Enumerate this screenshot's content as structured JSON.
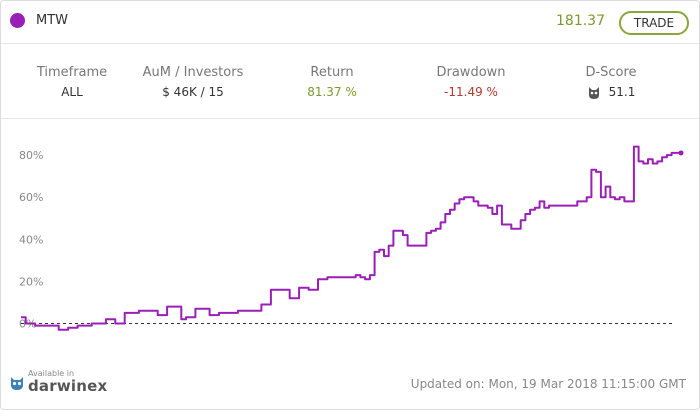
{
  "header": {
    "name": "MTW",
    "price": "181.37",
    "trade_label": "TRADE",
    "dot_color": "#9a1fb7",
    "price_color": "#7a9a2e"
  },
  "stats": [
    {
      "label": "Timeframe",
      "value": "ALL"
    },
    {
      "label": "AuM / Investors",
      "value": "$ 46K / 15"
    },
    {
      "label": "Return",
      "value": "81.37 %",
      "color": "#7a9a2e"
    },
    {
      "label": "Drawdown",
      "value": "-11.49 %",
      "color": "#b03a2e"
    },
    {
      "label": "D-Score",
      "value": "51.1",
      "icon": "owl-icon"
    }
  ],
  "chart_data": {
    "type": "line",
    "ylabel": "",
    "yticks": [
      "0%",
      "20%",
      "40%",
      "60%",
      "80%"
    ],
    "ylim": [
      -5,
      90
    ],
    "baseline": 0,
    "line_color": "#9a1fb7",
    "series": [
      {
        "values": [
          [
            0,
            3
          ],
          [
            1,
            0
          ],
          [
            2,
            0
          ],
          [
            3,
            -1
          ],
          [
            5,
            -1
          ],
          [
            8,
            -3
          ],
          [
            10,
            -2
          ],
          [
            12,
            -1
          ],
          [
            15,
            0
          ],
          [
            18,
            2
          ],
          [
            20,
            0
          ],
          [
            22,
            5
          ],
          [
            25,
            6
          ],
          [
            27,
            6
          ],
          [
            29,
            4
          ],
          [
            31,
            8
          ],
          [
            33,
            8
          ],
          [
            34,
            2
          ],
          [
            35,
            3
          ],
          [
            37,
            7
          ],
          [
            39,
            7
          ],
          [
            40,
            4
          ],
          [
            42,
            5
          ],
          [
            44,
            5
          ],
          [
            46,
            6
          ],
          [
            48,
            6
          ],
          [
            49,
            6
          ],
          [
            51,
            9
          ],
          [
            52,
            9
          ],
          [
            53,
            16
          ],
          [
            55,
            16
          ],
          [
            56,
            16
          ],
          [
            57,
            12
          ],
          [
            59,
            17
          ],
          [
            61,
            16
          ],
          [
            63,
            21
          ],
          [
            65,
            22
          ],
          [
            67,
            22
          ],
          [
            69,
            22
          ],
          [
            71,
            23
          ],
          [
            72,
            22
          ],
          [
            73,
            21
          ],
          [
            74,
            23
          ],
          [
            75,
            34
          ],
          [
            76,
            35
          ],
          [
            77,
            32
          ],
          [
            78,
            37
          ],
          [
            79,
            44
          ],
          [
            80,
            44
          ],
          [
            81,
            42
          ],
          [
            82,
            37
          ],
          [
            83,
            37
          ],
          [
            84,
            37
          ],
          [
            85,
            37
          ],
          [
            86,
            43
          ],
          [
            87,
            44
          ],
          [
            88,
            45
          ],
          [
            89,
            48
          ],
          [
            90,
            52
          ],
          [
            91,
            54
          ],
          [
            92,
            57
          ],
          [
            93,
            59
          ],
          [
            94,
            60
          ],
          [
            95,
            60
          ],
          [
            96,
            58
          ],
          [
            97,
            56
          ],
          [
            98,
            56
          ],
          [
            99,
            55
          ],
          [
            100,
            52
          ],
          [
            101,
            56
          ],
          [
            102,
            47
          ],
          [
            103,
            47
          ],
          [
            104,
            45
          ],
          [
            105,
            45
          ],
          [
            106,
            49
          ],
          [
            107,
            52
          ],
          [
            108,
            54
          ],
          [
            109,
            55
          ],
          [
            110,
            58
          ],
          [
            111,
            55
          ],
          [
            112,
            56
          ],
          [
            113,
            56
          ],
          [
            114,
            56
          ],
          [
            115,
            56
          ],
          [
            116,
            56
          ],
          [
            117,
            56
          ],
          [
            118,
            58
          ],
          [
            119,
            58
          ],
          [
            120,
            60
          ],
          [
            121,
            73
          ],
          [
            122,
            72
          ],
          [
            123,
            60
          ],
          [
            124,
            65
          ],
          [
            125,
            60
          ],
          [
            126,
            59
          ],
          [
            127,
            60
          ],
          [
            128,
            58
          ],
          [
            129,
            58
          ],
          [
            130,
            84
          ],
          [
            131,
            77
          ],
          [
            132,
            76
          ],
          [
            133,
            78
          ],
          [
            134,
            76
          ],
          [
            135,
            77
          ],
          [
            136,
            79
          ],
          [
            137,
            80
          ],
          [
            138,
            81
          ],
          [
            139,
            81
          ],
          [
            140,
            81
          ]
        ]
      }
    ]
  },
  "footer": {
    "updated": "Updated on: Mon, 19 Mar 2018 11:15:00 GMT",
    "brand_small": "Available in",
    "brand_name": "darwinex"
  }
}
